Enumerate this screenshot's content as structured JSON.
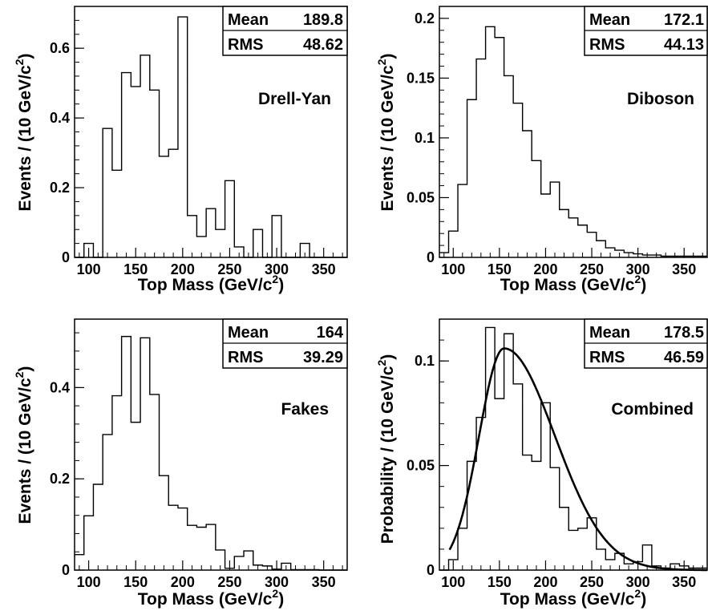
{
  "chart_data": [
    {
      "type": "histogram",
      "title": "",
      "annotation": "Drell-Yan",
      "xlabel": "Top Mass (GeV/c",
      "xlabel_sup": "2",
      "xlabel_tail": ")",
      "ylabel": "Events / (10 GeV/c",
      "ylabel_sup": "2",
      "ylabel_tail": ")",
      "xlim": [
        85,
        375
      ],
      "ylim": [
        0,
        0.72
      ],
      "xticks": [
        100,
        150,
        200,
        250,
        300,
        350
      ],
      "xtick_labels": [
        "100",
        "150",
        "200",
        "250",
        "300",
        "350"
      ],
      "yticks": [
        0,
        0.2,
        0.4,
        0.6
      ],
      "ytick_labels": [
        "0",
        "0.2",
        "0.4",
        "0.6"
      ],
      "bin_width": 10,
      "bin_start": 85,
      "values": [
        0,
        0.04,
        0,
        0.37,
        0.25,
        0.53,
        0.49,
        0.58,
        0.48,
        0.29,
        0.31,
        0.69,
        0.12,
        0.06,
        0.14,
        0.08,
        0.22,
        0.03,
        0,
        0.08,
        0,
        0.12,
        0,
        0,
        0.04,
        0,
        0,
        0,
        0
      ],
      "stats": {
        "mean_label": "Mean",
        "mean_value": "189.8",
        "rms_label": "RMS",
        "rms_value": "48.62"
      }
    },
    {
      "type": "histogram",
      "title": "",
      "annotation": "Diboson",
      "xlabel": "Top Mass (GeV/c",
      "xlabel_sup": "2",
      "xlabel_tail": ")",
      "ylabel": "Events / (10 GeV/c",
      "ylabel_sup": "2",
      "ylabel_tail": ")",
      "xlim": [
        85,
        375
      ],
      "ylim": [
        0,
        0.21
      ],
      "xticks": [
        100,
        150,
        200,
        250,
        300,
        350
      ],
      "xtick_labels": [
        "100",
        "150",
        "200",
        "250",
        "300",
        "350"
      ],
      "yticks": [
        0,
        0.05,
        0.1,
        0.15,
        0.2
      ],
      "ytick_labels": [
        "0",
        "0.05",
        "0.1",
        "0.15",
        "0.2"
      ],
      "bin_width": 10,
      "bin_start": 85,
      "values": [
        0.004,
        0.022,
        0.061,
        0.132,
        0.166,
        0.193,
        0.184,
        0.152,
        0.129,
        0.106,
        0.081,
        0.053,
        0.063,
        0.04,
        0.033,
        0.027,
        0.021,
        0.014,
        0.008,
        0.006,
        0.004,
        0.003,
        0.002,
        0.002,
        0.001,
        0.001,
        0.001,
        0.001,
        0.001
      ],
      "stats": {
        "mean_label": "Mean",
        "mean_value": "172.1",
        "rms_label": "RMS",
        "rms_value": "44.13"
      }
    },
    {
      "type": "histogram",
      "title": "",
      "annotation": "Fakes",
      "xlabel": "Top Mass (GeV/c",
      "xlabel_sup": "2",
      "xlabel_tail": ")",
      "ylabel": "Events / (10 GeV/c",
      "ylabel_sup": "2",
      "ylabel_tail": ")",
      "xlim": [
        85,
        375
      ],
      "ylim": [
        0,
        0.55
      ],
      "xticks": [
        100,
        150,
        200,
        250,
        300,
        350
      ],
      "xtick_labels": [
        "100",
        "150",
        "200",
        "250",
        "300",
        "350"
      ],
      "yticks": [
        0,
        0.2,
        0.4
      ],
      "ytick_labels": [
        "0",
        "0.2",
        "0.4"
      ],
      "bin_width": 10,
      "bin_start": 85,
      "values": [
        0.034,
        0.119,
        0.188,
        0.297,
        0.382,
        0.512,
        0.324,
        0.509,
        0.385,
        0.207,
        0.142,
        0.136,
        0.098,
        0.094,
        0.1,
        0.044,
        0.004,
        0.03,
        0.042,
        0.011,
        0.009,
        0.002,
        0.015,
        0.001,
        0.001,
        0.001,
        0,
        0,
        0
      ],
      "stats": {
        "mean_label": "Mean",
        "mean_value": "164",
        "rms_label": "RMS",
        "rms_value": "39.29"
      }
    },
    {
      "type": "histogram",
      "title": "",
      "annotation": "Combined",
      "xlabel": "Top Mass (GeV/c",
      "xlabel_sup": "2",
      "xlabel_tail": ")",
      "ylabel": "Probability / (10 GeV/c",
      "ylabel_sup": "2",
      "ylabel_tail": ")",
      "xlim": [
        85,
        375
      ],
      "ylim": [
        0,
        0.12
      ],
      "xticks": [
        100,
        150,
        200,
        250,
        300,
        350
      ],
      "xtick_labels": [
        "100",
        "150",
        "200",
        "250",
        "300",
        "350"
      ],
      "yticks": [
        0,
        0.05,
        0.1
      ],
      "ytick_labels": [
        "0",
        "0.05",
        "0.1"
      ],
      "bin_width": 10,
      "bin_start": 85,
      "values": [
        0,
        0.005,
        0.02,
        0.052,
        0.073,
        0.116,
        0.082,
        0.113,
        0.089,
        0.055,
        0.052,
        0.08,
        0.049,
        0.03,
        0.019,
        0.02,
        0.025,
        0.01,
        0.005,
        0.008,
        0.003,
        0.004,
        0.012,
        0.002,
        0.001,
        0.003,
        0.002,
        0.001,
        0.001
      ],
      "fit": {
        "type": "curve",
        "peak_x": 155,
        "peak_y": 0.106,
        "sigma_left": 27,
        "sigma_right": 55
      },
      "stats": {
        "mean_label": "Mean",
        "mean_value": "178.5",
        "rms_label": "RMS",
        "rms_value": "46.59"
      }
    }
  ]
}
